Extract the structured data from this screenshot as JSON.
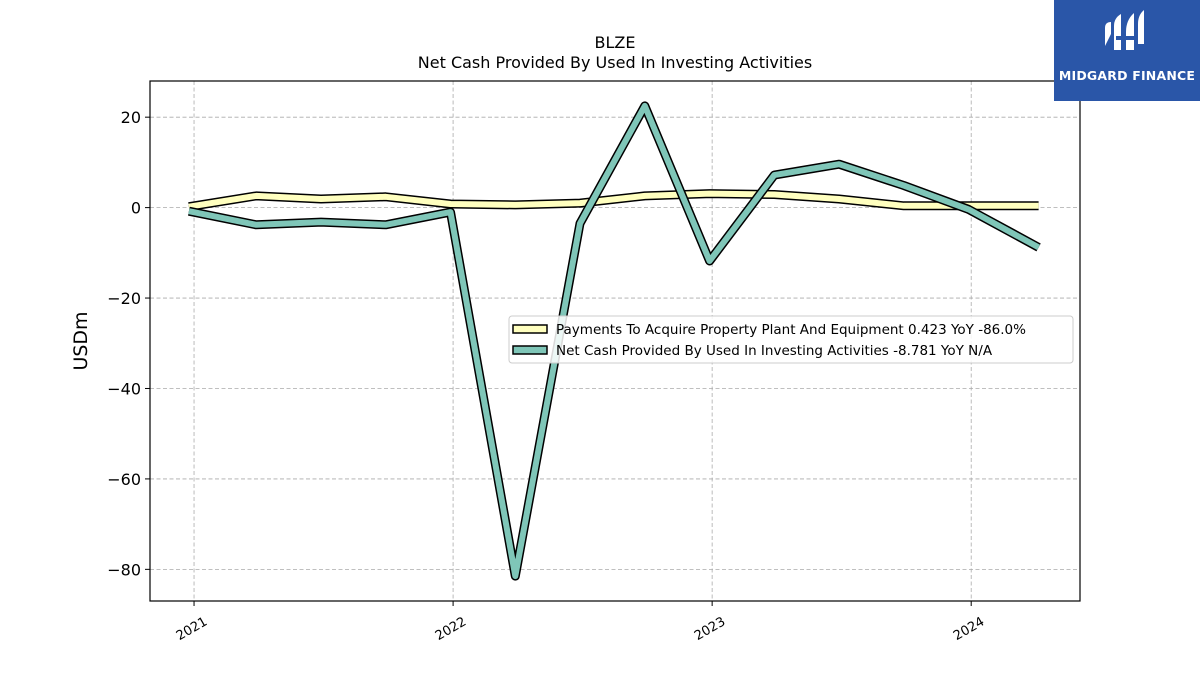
{
  "logo": {
    "text": "MIDGARD FINANCE",
    "bg_color": "#2a56a8"
  },
  "chart_data": {
    "type": "line",
    "title": "BLZE",
    "subtitle": "Net Cash Provided By Used In Investing Activities",
    "ylabel": "USDm",
    "xlabel": "",
    "ylim": [
      -87,
      28
    ],
    "xlim": [
      2020.83,
      2024.42
    ],
    "yticks": [
      20,
      0,
      -20,
      -40,
      -60,
      -80
    ],
    "ytick_labels": [
      "20",
      "0",
      "−20",
      "−40",
      "−60",
      "−80"
    ],
    "xticks": [
      2021,
      2022,
      2023,
      2024
    ],
    "xtick_labels": [
      "2021",
      "2022",
      "2023",
      "2024"
    ],
    "grid": true,
    "legend_position": "center-right",
    "x": [
      2020.98,
      2021.24,
      2021.49,
      2021.74,
      2021.99,
      2022.24,
      2022.49,
      2022.74,
      2022.99,
      2023.24,
      2023.49,
      2023.74,
      2023.99,
      2024.26
    ],
    "series": [
      {
        "name": "Payments To Acquire Property Plant And Equipment",
        "legend_label": "Payments To Acquire Property Plant And Equipment  0.423 YoY -86.0%",
        "color": "#ffffbf",
        "values": [
          0.2,
          2.6,
          1.9,
          2.4,
          0.8,
          0.6,
          1.0,
          2.6,
          3.1,
          2.9,
          1.9,
          0.4,
          0.4,
          0.4
        ]
      },
      {
        "name": "Net Cash Provided By Used In Investing Activities",
        "legend_label": "Net Cash Provided By Used In Investing Activities  -8.781 YoY N/A",
        "color": "#7fc6b8",
        "values": [
          -0.8,
          -3.8,
          -3.2,
          -3.8,
          -1.0,
          -81.5,
          -3.5,
          22.5,
          -11.8,
          7.2,
          9.6,
          4.9,
          -0.4,
          -8.8
        ]
      }
    ]
  }
}
